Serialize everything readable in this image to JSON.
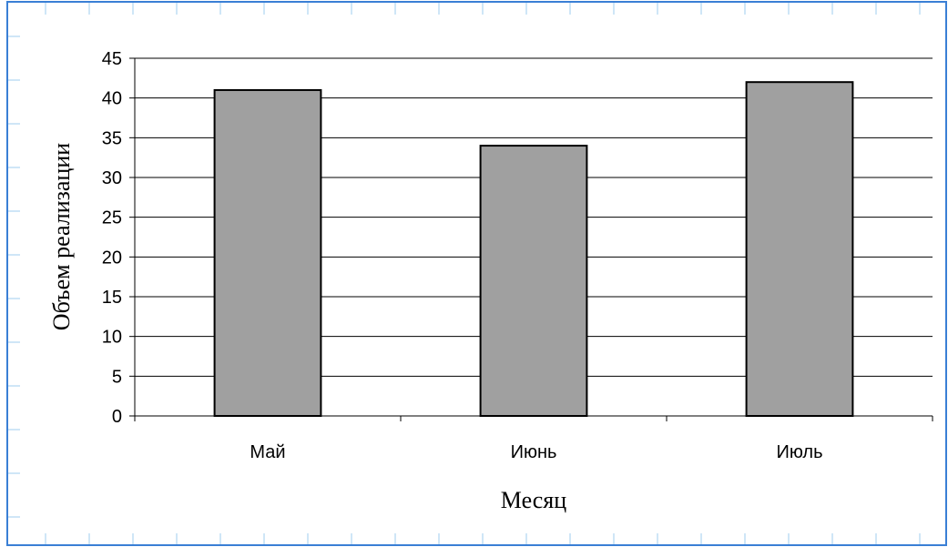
{
  "chart_data": {
    "type": "bar",
    "categories": [
      "Май",
      "Июнь",
      "Июль"
    ],
    "values": [
      41,
      34,
      42
    ],
    "title": "",
    "xlabel": "Месяц",
    "ylabel": "Объем реализации",
    "ylim": [
      0,
      45
    ],
    "y_ticks": [
      "0",
      "5",
      "10",
      "15",
      "20",
      "25",
      "30",
      "35",
      "40",
      "45"
    ],
    "grid": true,
    "legend": "none",
    "bar_color": "#a0a0a0",
    "bar_edge_color": "#000000",
    "grid_color": "#000000",
    "frame_color": "#3a7fd5",
    "background_grid_color": "#cfe6f7"
  }
}
